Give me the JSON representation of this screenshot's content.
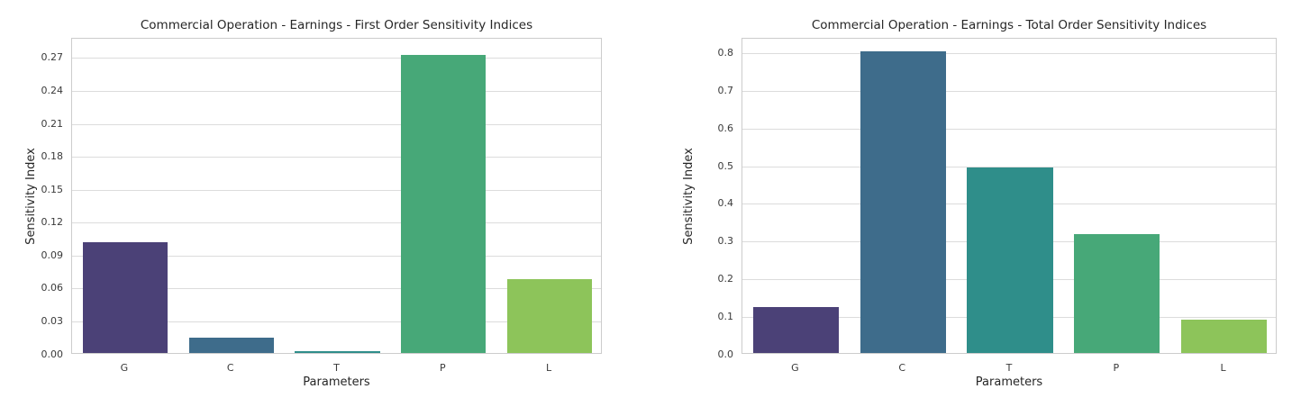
{
  "style": {
    "background": "#ffffff",
    "grid_color": "#dcdcdc",
    "spine_color": "#cccccc",
    "text_color": "#262626",
    "tick_color": "#3a3a3a"
  },
  "chart_data": [
    {
      "type": "bar",
      "title": "Commercial Operation - Earnings - First Order Sensitivity Indices",
      "xlabel": "Parameters",
      "ylabel": "Sensitivity Index",
      "categories": [
        "G",
        "C",
        "T",
        "P",
        "L"
      ],
      "values": [
        0.101,
        0.014,
        0.002,
        0.272,
        0.067
      ],
      "bar_colors": [
        "#4b4177",
        "#3e6c8b",
        "#2f8e8a",
        "#47a878",
        "#8dc45a"
      ],
      "y_ticks": [
        0,
        0.03,
        0.06,
        0.09,
        0.12,
        0.15,
        0.18,
        0.21,
        0.24,
        0.27
      ],
      "y_tick_labels": [
        "0.00",
        "0.03",
        "0.06",
        "0.09",
        "0.12",
        "0.15",
        "0.18",
        "0.21",
        "0.24",
        "0.27"
      ],
      "ylim": [
        0,
        0.288
      ],
      "grid": true,
      "legend": "none",
      "bar_width_fraction": 0.8
    },
    {
      "type": "bar",
      "title": "Commercial Operation - Earnings - Total Order Sensitivity Indices",
      "xlabel": "Parameters",
      "ylabel": "Sensitivity Index",
      "categories": [
        "G",
        "C",
        "T",
        "P",
        "L"
      ],
      "values": [
        0.121,
        0.801,
        0.493,
        0.316,
        0.088
      ],
      "bar_colors": [
        "#4b4177",
        "#3e6c8b",
        "#2f8e8a",
        "#47a878",
        "#8dc45a"
      ],
      "y_ticks": [
        0,
        0.1,
        0.2,
        0.3,
        0.4,
        0.5,
        0.6,
        0.7,
        0.8
      ],
      "y_tick_labels": [
        "0.0",
        "0.1",
        "0.2",
        "0.3",
        "0.4",
        "0.5",
        "0.6",
        "0.7",
        "0.8"
      ],
      "ylim": [
        0,
        0.84
      ],
      "grid": true,
      "legend": "none",
      "bar_width_fraction": 0.8
    }
  ]
}
